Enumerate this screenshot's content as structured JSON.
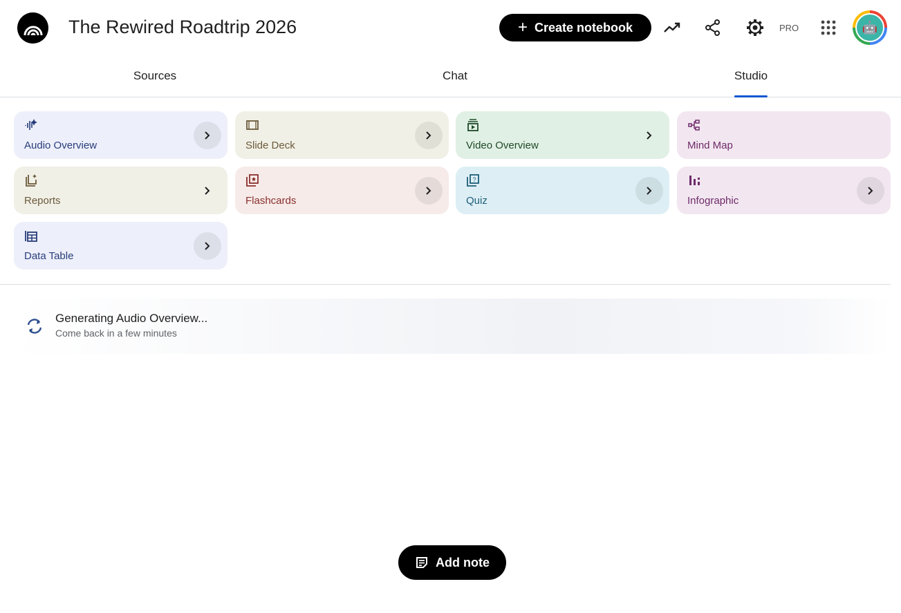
{
  "header": {
    "title": "The Rewired Roadtrip 2026",
    "create_label": "Create notebook",
    "pro_label": "PRO",
    "icons": [
      "analytics-icon",
      "share-icon",
      "settings-icon",
      "apps-grid-icon"
    ]
  },
  "tabs": [
    {
      "label": "Sources"
    },
    {
      "label": "Chat"
    },
    {
      "label": "Studio",
      "active": true
    }
  ],
  "tiles": [
    {
      "label": "Audio Overview",
      "icon": "audio-waveform-icon",
      "bg": "#edeffa",
      "fg": "#273d7a",
      "arrow_circle": true
    },
    {
      "label": "Slide Deck",
      "icon": "slides-icon",
      "bg": "#f1f0e7",
      "fg": "#6b5a3a",
      "arrow_circle": true
    },
    {
      "label": "Video Overview",
      "icon": "video-icon",
      "bg": "#e1f0e4",
      "fg": "#1d4a28",
      "arrow_circle": false
    },
    {
      "label": "Mind Map",
      "icon": "mind-map-icon",
      "bg": "#f2e7f0",
      "fg": "#6e2a6a",
      "arrow": false
    },
    {
      "label": "Reports",
      "icon": "reports-icon",
      "bg": "#f1f0e7",
      "fg": "#6b5a3a",
      "arrow_circle": false
    },
    {
      "label": "Flashcards",
      "icon": "flashcards-icon",
      "bg": "#f6ebe8",
      "fg": "#8a2f2f",
      "arrow_circle": true
    },
    {
      "label": "Quiz",
      "icon": "quiz-icon",
      "bg": "#ddeff5",
      "fg": "#1e5d78",
      "arrow_circle": true
    },
    {
      "label": "Infographic",
      "icon": "infographic-icon",
      "bg": "#f2e7f0",
      "fg": "#6e2a6a",
      "arrow_circle": true
    },
    {
      "label": "Data Table",
      "icon": "data-table-icon",
      "bg": "#edeffa",
      "fg": "#273d7a",
      "arrow_circle": true
    }
  ],
  "generating": {
    "title": "Generating Audio Overview...",
    "subtitle": "Come back in a few minutes"
  },
  "add_note_label": "Add note"
}
